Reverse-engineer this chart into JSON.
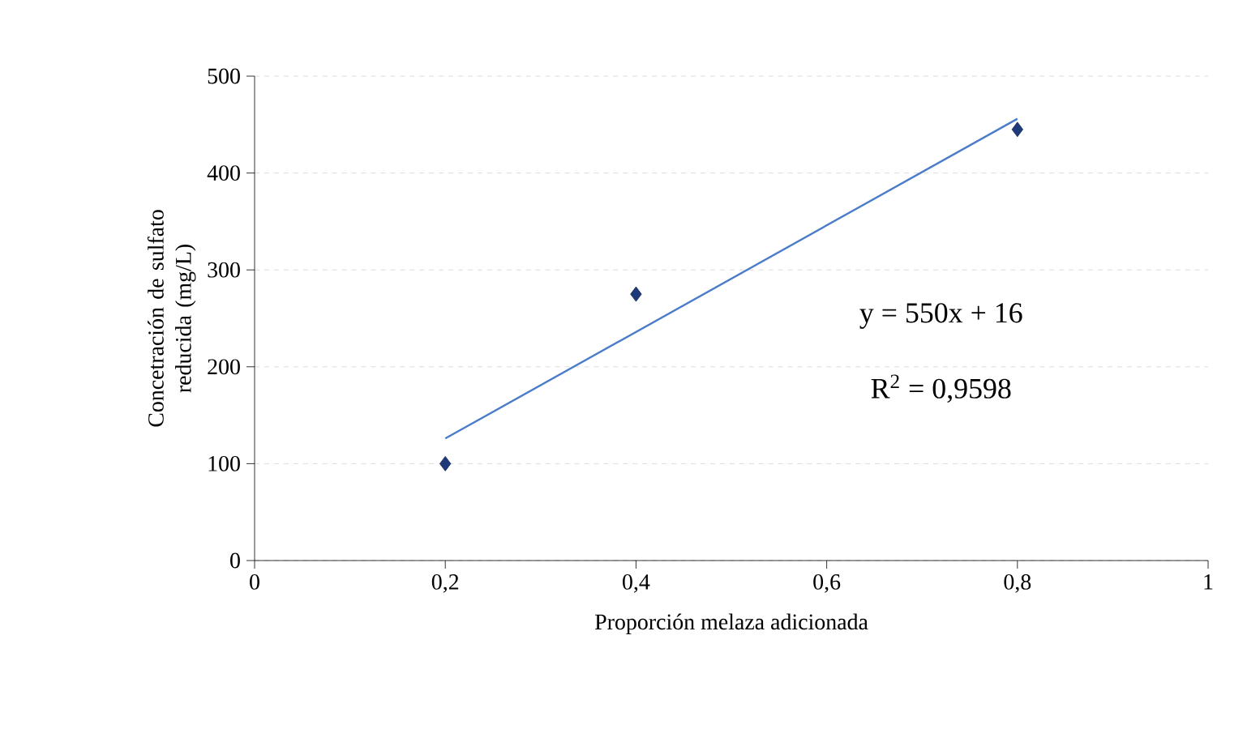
{
  "chart_data": {
    "type": "scatter",
    "xlabel": "Proporción melaza adicionada",
    "ylabel": "Concetración de sulfato reducida   (mg/L)",
    "xlim": [
      0,
      1
    ],
    "ylim": [
      0,
      500
    ],
    "xticks": [
      0,
      {
        "value": 0.2,
        "label": "0,2"
      },
      {
        "value": 0.4,
        "label": "0,4"
      },
      {
        "value": 0.6,
        "label": "0,6"
      },
      {
        "value": 0.8,
        "label": "0,8"
      },
      1
    ],
    "yticks": [
      0,
      100,
      200,
      300,
      400,
      500
    ],
    "grid": "y",
    "annotations": [
      "y = 550x + 16",
      "R$^{2}$ = 0,9598"
    ],
    "series": [
      {
        "marker": "diamond",
        "color": "#1f3a7a",
        "x": [
          0.2,
          0.4,
          0.8
        ],
        "values": [
          100,
          275,
          445
        ]
      },
      {
        "type": "line",
        "marker": "none",
        "color": "#4a7cc9",
        "line_style": "solid",
        "x": [
          0.2,
          0.8
        ],
        "values": [
          126,
          456
        ]
      }
    ]
  }
}
